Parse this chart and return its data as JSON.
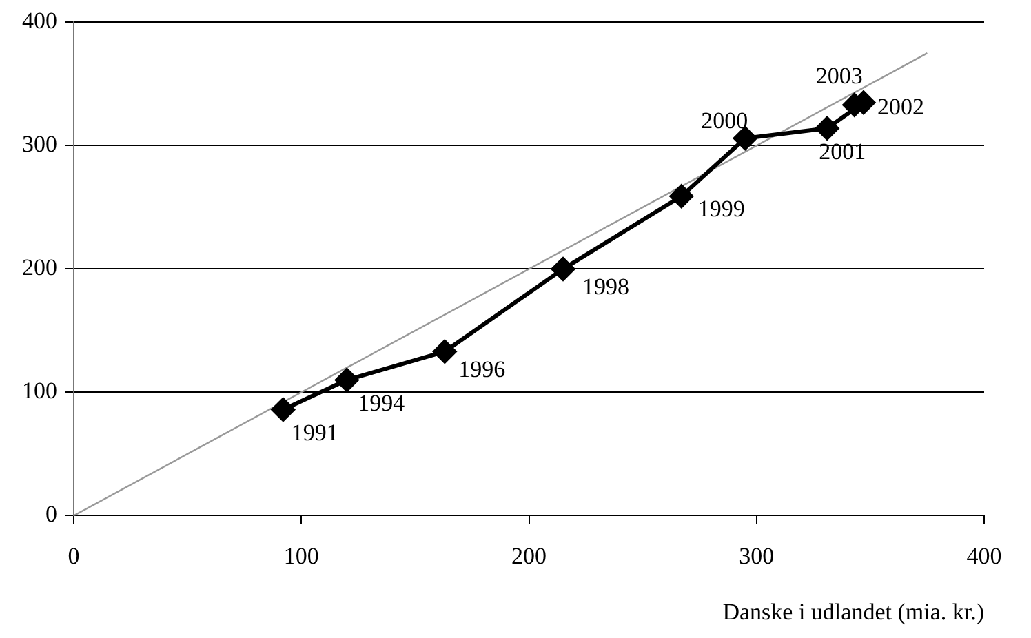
{
  "chart_data": {
    "type": "line",
    "xlabel": "Danske i udlandet (mia. kr.)",
    "xlim": [
      0,
      400
    ],
    "xticks": [
      0,
      100,
      200,
      300,
      400
    ],
    "ylim": [
      0,
      400
    ],
    "yticks": [
      0,
      100,
      200,
      300,
      400
    ],
    "grid": "y",
    "legend": false,
    "series": [
      {
        "color": "#000000",
        "marker": "diamond",
        "x": [
          92,
          120,
          163,
          215,
          267,
          295,
          331,
          347,
          343
        ],
        "values": [
          86,
          110,
          133,
          200,
          259,
          306,
          314,
          335,
          333
        ]
      },
      {
        "color": "#999999",
        "marker": "none",
        "x": [
          0,
          375
        ],
        "values": [
          0,
          375
        ]
      }
    ],
    "annotations": [
      {
        "text": "1991",
        "x": 92,
        "y": 86
      },
      {
        "text": "1994",
        "x": 120,
        "y": 110
      },
      {
        "text": "1996",
        "x": 163,
        "y": 133
      },
      {
        "text": "1998",
        "x": 215,
        "y": 200
      },
      {
        "text": "1999",
        "x": 267,
        "y": 259
      },
      {
        "text": "2000",
        "x": 295,
        "y": 306
      },
      {
        "text": "2001",
        "x": 331,
        "y": 314
      },
      {
        "text": "2002",
        "x": 347,
        "y": 335
      },
      {
        "text": "2003",
        "x": 343,
        "y": 333
      }
    ]
  }
}
